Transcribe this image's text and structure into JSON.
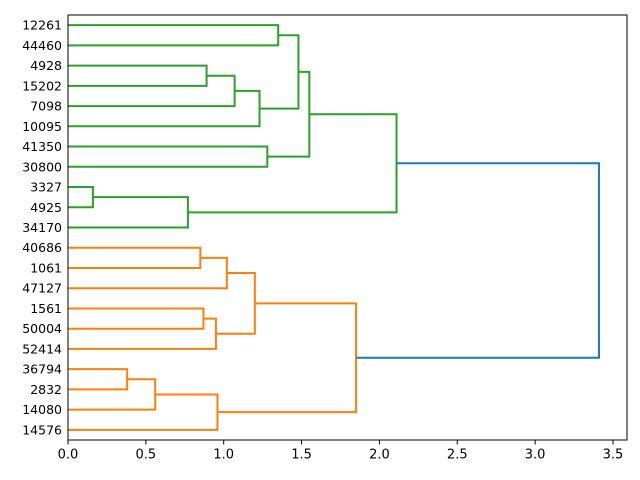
{
  "figure": {
    "background": "#ffffff",
    "title": ""
  },
  "chart_data": {
    "type": "dendrogram",
    "orientation": "right",
    "title": "",
    "xlabel": "",
    "ylabel": "",
    "grid": false,
    "legend": null,
    "xlim": [
      0,
      3.59
    ],
    "x_ticks": [
      {
        "value": 0.0,
        "label": "0.0"
      },
      {
        "value": 0.5,
        "label": "0.5"
      },
      {
        "value": 1.0,
        "label": "1.0"
      },
      {
        "value": 1.5,
        "label": "1.5"
      },
      {
        "value": 2.0,
        "label": "2.0"
      },
      {
        "value": 2.5,
        "label": "2.5"
      },
      {
        "value": 3.0,
        "label": "3.0"
      },
      {
        "value": 3.5,
        "label": "3.5"
      }
    ],
    "leaves": [
      "12261",
      "44460",
      "4928",
      "15202",
      "7098",
      "10095",
      "41350",
      "30800",
      "3327",
      "4925",
      "34170",
      "40686",
      "1061",
      "47127",
      "1561",
      "50004",
      "52414",
      "36794",
      "2832",
      "14080",
      "14576"
    ],
    "merges": [
      {
        "a": 0,
        "b": 1,
        "distance": 1.35,
        "color": "green"
      },
      {
        "a": 2,
        "b": 3,
        "distance": 0.89,
        "color": "green"
      },
      {
        "a": 22,
        "b": 4,
        "distance": 1.07,
        "color": "green"
      },
      {
        "a": 23,
        "b": 5,
        "distance": 1.23,
        "color": "green"
      },
      {
        "a": 21,
        "b": 24,
        "distance": 1.48,
        "color": "green"
      },
      {
        "a": 6,
        "b": 7,
        "distance": 1.28,
        "color": "green"
      },
      {
        "a": 25,
        "b": 26,
        "distance": 1.55,
        "color": "green"
      },
      {
        "a": 8,
        "b": 9,
        "distance": 0.16,
        "color": "green"
      },
      {
        "a": 28,
        "b": 10,
        "distance": 0.77,
        "color": "green"
      },
      {
        "a": 27,
        "b": 29,
        "distance": 2.11,
        "color": "green"
      },
      {
        "a": 11,
        "b": 12,
        "distance": 0.85,
        "color": "orange"
      },
      {
        "a": 31,
        "b": 13,
        "distance": 1.02,
        "color": "orange"
      },
      {
        "a": 14,
        "b": 15,
        "distance": 0.87,
        "color": "orange"
      },
      {
        "a": 33,
        "b": 16,
        "distance": 0.95,
        "color": "orange"
      },
      {
        "a": 32,
        "b": 34,
        "distance": 1.2,
        "color": "orange"
      },
      {
        "a": 17,
        "b": 18,
        "distance": 0.38,
        "color": "orange"
      },
      {
        "a": 36,
        "b": 19,
        "distance": 0.56,
        "color": "orange"
      },
      {
        "a": 37,
        "b": 20,
        "distance": 0.96,
        "color": "orange"
      },
      {
        "a": 35,
        "b": 38,
        "distance": 1.85,
        "color": "orange"
      },
      {
        "a": 30,
        "b": 39,
        "distance": 3.41,
        "color": "blue"
      }
    ],
    "palette": {
      "green": "#2ca02c",
      "orange": "#ff7f0e",
      "blue": "#1f77b4"
    },
    "axes_color": "#000000",
    "tick_label_color": "#000000"
  }
}
